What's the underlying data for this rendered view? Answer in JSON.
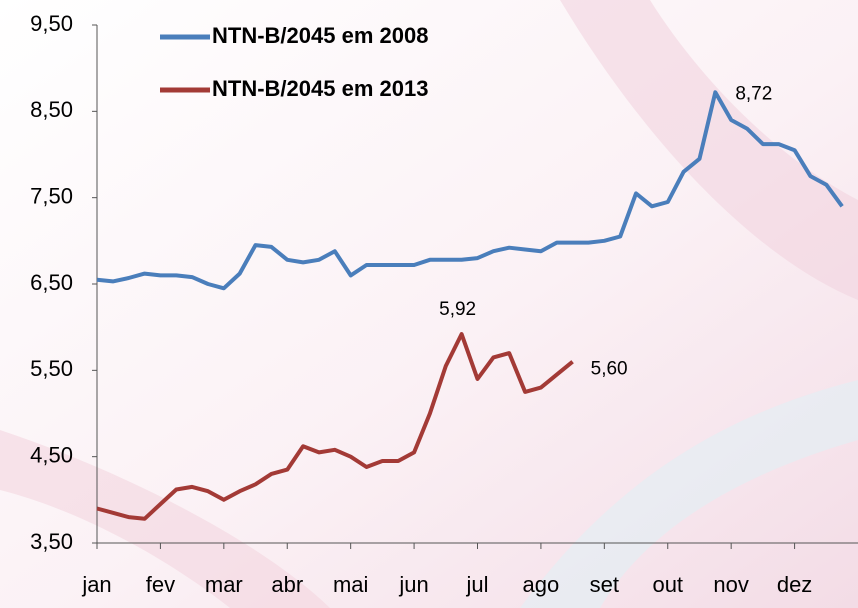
{
  "chart_data": {
    "type": "line",
    "categories": [
      "jan",
      null,
      null,
      null,
      "fev",
      null,
      null,
      null,
      "mar",
      null,
      null,
      null,
      "abr",
      null,
      null,
      null,
      "mai",
      null,
      null,
      null,
      "jun",
      null,
      null,
      null,
      "jul",
      null,
      null,
      null,
      "ago",
      null,
      null,
      null,
      "set",
      null,
      null,
      null,
      "out",
      null,
      null,
      null,
      "nov",
      null,
      null,
      null,
      "dez",
      null,
      null,
      null
    ],
    "series": [
      {
        "name": "NTN-B/2045 em 2008",
        "color": "#4a7ebb",
        "values": [
          6.55,
          6.53,
          6.57,
          6.62,
          6.6,
          6.6,
          6.58,
          6.5,
          6.45,
          6.62,
          6.95,
          6.93,
          6.78,
          6.75,
          6.78,
          6.88,
          6.6,
          6.72,
          6.72,
          6.72,
          6.72,
          6.78,
          6.78,
          6.78,
          6.8,
          6.88,
          6.92,
          6.9,
          6.88,
          6.98,
          6.98,
          6.98,
          7.0,
          7.05,
          7.55,
          7.4,
          7.45,
          7.8,
          7.95,
          8.72,
          8.4,
          8.3,
          8.12,
          8.12,
          8.05,
          7.75,
          7.65,
          7.4
        ],
        "value_labels": [
          null,
          null,
          null,
          null,
          null,
          null,
          null,
          null,
          null,
          null,
          null,
          null,
          null,
          null,
          null,
          null,
          null,
          null,
          null,
          null,
          null,
          null,
          null,
          null,
          null,
          null,
          null,
          null,
          null,
          null,
          null,
          null,
          null,
          null,
          null,
          null,
          null,
          null,
          null,
          "8,72",
          null,
          null,
          null,
          null,
          null,
          null,
          null,
          null
        ]
      },
      {
        "name": "NTN-B/2045 em 2013",
        "color": "#a33a36",
        "values": [
          3.9,
          3.85,
          3.8,
          3.78,
          3.95,
          4.12,
          4.15,
          4.1,
          4.0,
          4.1,
          4.18,
          4.3,
          4.35,
          4.62,
          4.55,
          4.58,
          4.5,
          4.38,
          4.45,
          4.45,
          4.55,
          5.0,
          5.55,
          5.92,
          5.4,
          5.65,
          5.7,
          5.25,
          5.3,
          5.45,
          5.6,
          null,
          null,
          null,
          null,
          null,
          null,
          null,
          null,
          null,
          null,
          null,
          null,
          null,
          null,
          null,
          null,
          null
        ],
        "value_labels": [
          null,
          null,
          null,
          null,
          null,
          null,
          null,
          null,
          null,
          null,
          null,
          null,
          null,
          null,
          null,
          null,
          null,
          null,
          null,
          null,
          null,
          null,
          null,
          "5,92",
          null,
          null,
          null,
          null,
          null,
          null,
          "5,60",
          null,
          null,
          null,
          null,
          null,
          null,
          null,
          null,
          null,
          null,
          null,
          null,
          null,
          null,
          null,
          null,
          null
        ]
      }
    ],
    "ylim": [
      3.5,
      9.5
    ],
    "yticks": [
      {
        "value": 3.5,
        "label": "3,50"
      },
      {
        "value": 4.5,
        "label": "4,50"
      },
      {
        "value": 5.5,
        "label": "5,50"
      },
      {
        "value": 6.5,
        "label": "6,50"
      },
      {
        "value": 7.5,
        "label": "7,50"
      },
      {
        "value": 8.5,
        "label": "8,50"
      },
      {
        "value": 9.5,
        "label": "9,50"
      }
    ],
    "grid": false,
    "legend": "upper left"
  }
}
